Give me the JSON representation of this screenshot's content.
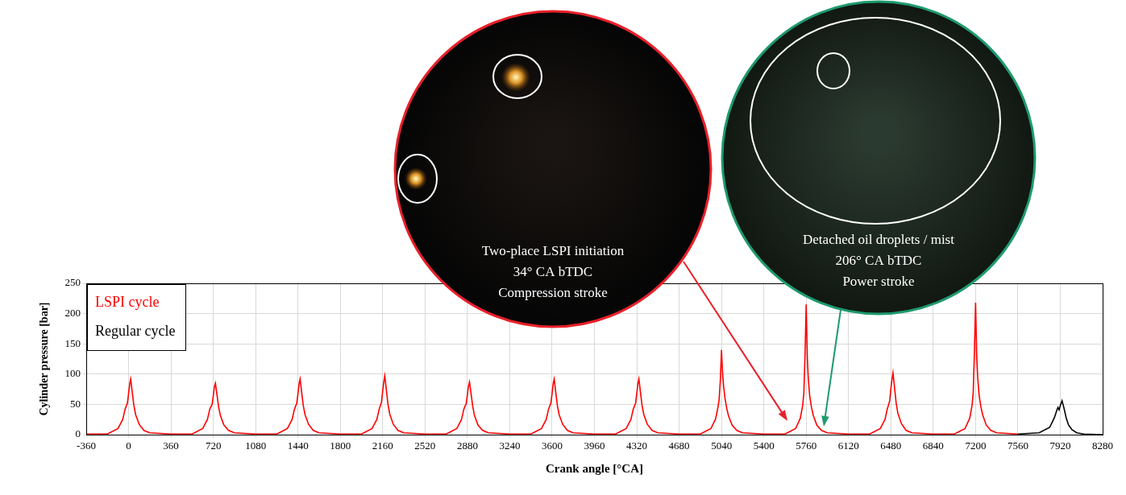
{
  "chart_data": {
    "type": "line",
    "xlabel": "Crank angle [°CA]",
    "ylabel": "Cylinder pressure [bar]",
    "xlim": [
      -360,
      8280
    ],
    "xticks": [
      -360,
      0,
      360,
      720,
      1080,
      1440,
      1800,
      2160,
      2520,
      2880,
      3240,
      3600,
      3960,
      4320,
      4680,
      5040,
      5400,
      5760,
      6120,
      6480,
      6840,
      7200,
      7560,
      7920,
      8280
    ],
    "ylim": [
      0,
      250
    ],
    "yticks": [
      0,
      50,
      100,
      150,
      200,
      250
    ],
    "grid": true,
    "legend": "upper left",
    "series": [
      {
        "name": "LSPI cycle",
        "color": "#ff0000",
        "x": [
          -360,
          -180,
          -90,
          -50,
          -30,
          -20,
          -10,
          0,
          10,
          18,
          30,
          45,
          60,
          90,
          130,
          180,
          360,
          540,
          630,
          670,
          690,
          700,
          710,
          720,
          730,
          738,
          750,
          765,
          780,
          810,
          850,
          900,
          1080,
          1260,
          1350,
          1390,
          1410,
          1420,
          1430,
          1440,
          1450,
          1458,
          1470,
          1485,
          1500,
          1530,
          1570,
          1620,
          1800,
          1980,
          2070,
          2110,
          2130,
          2140,
          2150,
          2160,
          2170,
          2178,
          2190,
          2205,
          2220,
          2250,
          2290,
          2340,
          2520,
          2700,
          2790,
          2830,
          2850,
          2860,
          2870,
          2880,
          2890,
          2898,
          2910,
          2925,
          2940,
          2970,
          3010,
          3060,
          3240,
          3420,
          3510,
          3550,
          3570,
          3580,
          3590,
          3600,
          3610,
          3618,
          3630,
          3645,
          3660,
          3690,
          3730,
          3780,
          3960,
          4140,
          4230,
          4270,
          4290,
          4300,
          4310,
          4320,
          4330,
          4338,
          4350,
          4365,
          4380,
          4410,
          4450,
          4500,
          4680,
          4860,
          4950,
          4990,
          5010,
          5020,
          5030,
          5040,
          5050,
          5058,
          5070,
          5085,
          5100,
          5130,
          5170,
          5220,
          5400,
          5580,
          5670,
          5710,
          5730,
          5740,
          5750,
          5760,
          5770,
          5778,
          5790,
          5805,
          5820,
          5850,
          5890,
          5940,
          6120,
          6300,
          6390,
          6430,
          6450,
          6460,
          6470,
          6480,
          6490,
          6498,
          6510,
          6525,
          6540,
          6570,
          6610,
          6660,
          6840,
          7020,
          7110,
          7150,
          7170,
          7180,
          7190,
          7200,
          7210,
          7218,
          7230,
          7245,
          7260,
          7290,
          7330,
          7380,
          7560
        ],
        "values": [
          1,
          1,
          10,
          25,
          42,
          47,
          52,
          68,
          85,
          92,
          72,
          48,
          33,
          17,
          7,
          3,
          1,
          1,
          10,
          25,
          42,
          46,
          50,
          64,
          80,
          85,
          68,
          46,
          32,
          16,
          7,
          3,
          1,
          1,
          10,
          25,
          42,
          47,
          52,
          68,
          85,
          92,
          72,
          48,
          33,
          17,
          7,
          3,
          1,
          1,
          10,
          25,
          42,
          48,
          54,
          72,
          88,
          97,
          76,
          50,
          34,
          17,
          7,
          3,
          1,
          1,
          10,
          25,
          42,
          47,
          51,
          66,
          81,
          87,
          70,
          47,
          32,
          16,
          7,
          3,
          1,
          1,
          10,
          25,
          42,
          47,
          52,
          68,
          85,
          92,
          72,
          48,
          33,
          17,
          7,
          3,
          1,
          1,
          10,
          25,
          42,
          47,
          52,
          68,
          85,
          92,
          72,
          48,
          33,
          17,
          7,
          3,
          1,
          1,
          10,
          26,
          45,
          58,
          88,
          140,
          100,
          80,
          60,
          43,
          31,
          16,
          7,
          3,
          1,
          1,
          10,
          27,
          48,
          68,
          130,
          215,
          125,
          92,
          64,
          45,
          32,
          16,
          7,
          3,
          1,
          1,
          10,
          25,
          43,
          49,
          56,
          76,
          92,
          102,
          80,
          52,
          35,
          18,
          7,
          3,
          1,
          1,
          10,
          27,
          48,
          70,
          135,
          218,
          128,
          94,
          65,
          46,
          33,
          16,
          7,
          3,
          1
        ]
      },
      {
        "name": "Regular cycle",
        "color": "#000000",
        "x": [
          7560,
          7740,
          7830,
          7870,
          7890,
          7900,
          7910,
          7920,
          7935,
          7950,
          7970,
          7990,
          8020,
          8060,
          8120,
          8280
        ],
        "values": [
          1,
          3,
          12,
          28,
          40,
          45,
          41,
          48,
          56,
          45,
          28,
          16,
          8,
          3,
          1,
          0
        ]
      }
    ],
    "annotations": [
      {
        "text": [
          "Two-place LSPI initiation",
          "34° CA bTDC",
          "Compression stroke"
        ],
        "color": "#e8202a"
      },
      {
        "text": [
          "Detached oil droplets / mist",
          "206° CA bTDC",
          "Power stroke"
        ],
        "color": "#1e9a6e"
      }
    ]
  }
}
